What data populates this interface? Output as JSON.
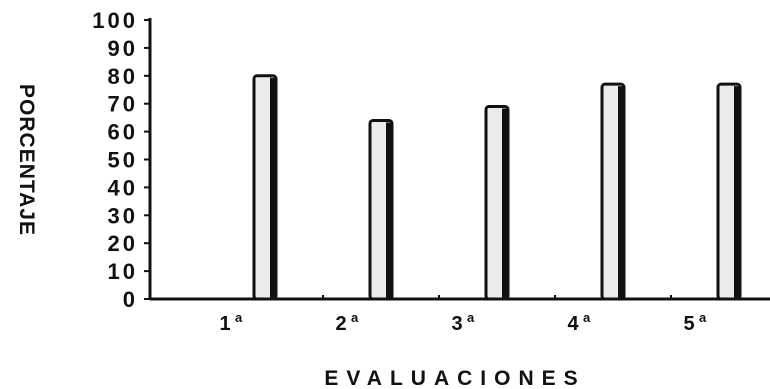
{
  "chart_data": {
    "type": "bar",
    "categories": [
      "1",
      "2",
      "3",
      "4",
      "5"
    ],
    "category_superscript": "a",
    "values": [
      80,
      64,
      69,
      77,
      77
    ],
    "title": "",
    "xlabel": "EVALUACIONES",
    "ylabel": "PORCENTAJE",
    "ylim": [
      0,
      100
    ],
    "yticks": [
      0,
      10,
      20,
      30,
      40,
      50,
      60,
      70,
      80,
      90,
      100
    ],
    "grid": false,
    "legend": "none",
    "colors": {
      "bar_fill": "#ebebeb",
      "bar_stroke": "#111111",
      "axis": "#111111",
      "text": "#111111"
    }
  }
}
